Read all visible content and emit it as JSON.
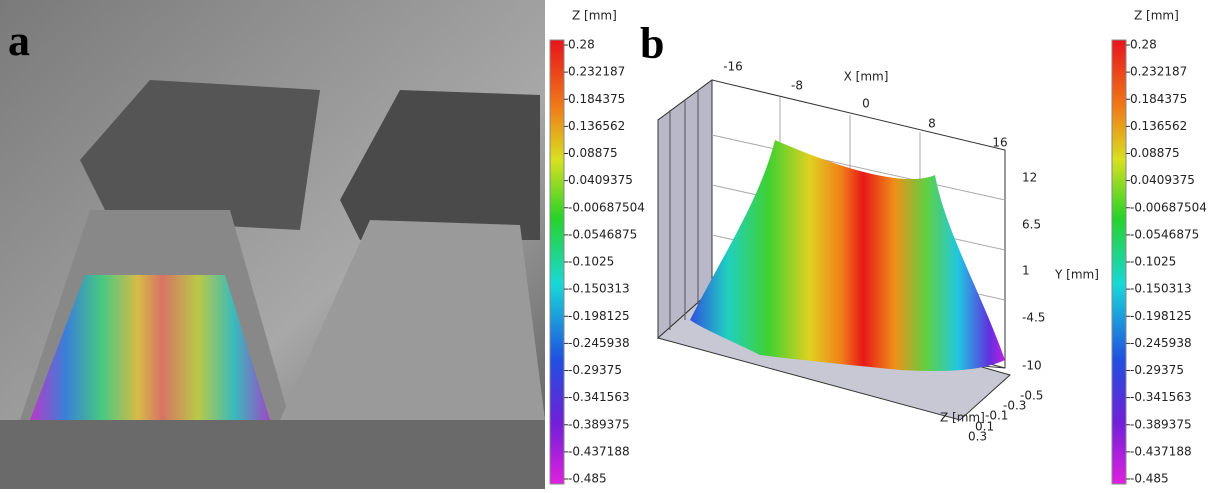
{
  "panel_a": {
    "label": "a",
    "colorbar": {
      "title": "Z [mm]",
      "labels": [
        "0.28",
        "0.232187",
        "0.184375",
        "0.136562",
        "0.08875",
        "0.0409375",
        "-0.00687504",
        "-0.0546875",
        "-0.1025",
        "-0.150313",
        "-0.198125",
        "-0.245938",
        "-0.29375",
        "-0.341563",
        "-0.389375",
        "-0.437188",
        "-0.485"
      ]
    }
  },
  "panel_b": {
    "label": "b",
    "x_axis": {
      "title": "X [mm]",
      "ticks": [
        "-16",
        "-8",
        "0",
        "8",
        "16"
      ]
    },
    "y_axis": {
      "title": "Y [mm]",
      "ticks": [
        "12",
        "6.5",
        "1",
        "-4.5",
        "-10"
      ]
    },
    "z_axis": {
      "title": "Z [mm]",
      "ticks": [
        "-0.5",
        "-0.3",
        "-0.1",
        "0.1",
        "0.3"
      ]
    },
    "colorbar": {
      "title": "Z [mm]",
      "labels": [
        "0.28",
        "0.232187",
        "0.184375",
        "0.136562",
        "0.08875",
        "0.0409375",
        "-0.00687504",
        "-0.0546875",
        "-0.1025",
        "-0.150313",
        "-0.198125",
        "-0.245938",
        "-0.29375",
        "-0.341563",
        "-0.389375",
        "-0.437188",
        "-0.485"
      ]
    }
  }
}
